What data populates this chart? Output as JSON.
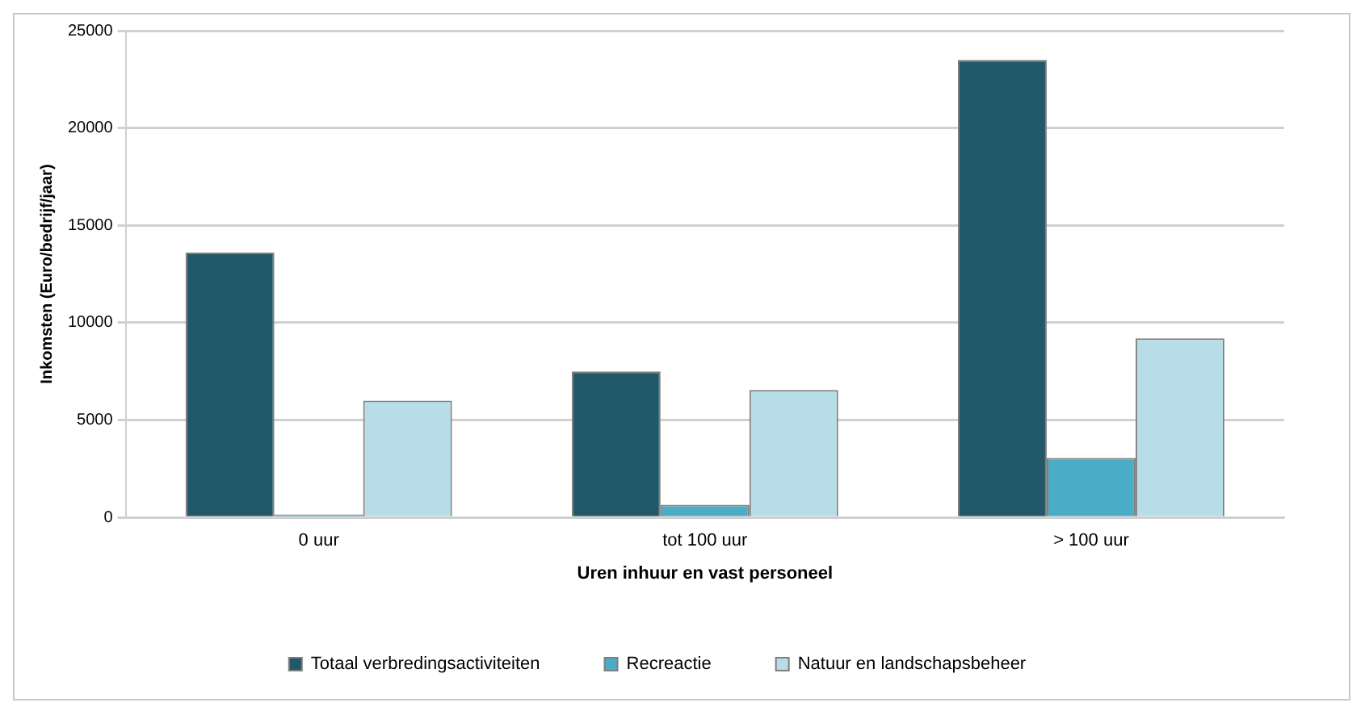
{
  "chart_data": {
    "type": "bar",
    "xlabel": "Uren inhuur en vast personeel",
    "ylabel": "Inkomsten (Euro/bedrijf/jaar)",
    "categories": [
      "0 uur",
      "tot 100 uur",
      "> 100 uur"
    ],
    "series": [
      {
        "name": "Totaal verbredingsactiviteiten",
        "color": "#215968",
        "values": [
          13600,
          7500,
          23500
        ]
      },
      {
        "name": "Recreactie",
        "color": "#4bacc6",
        "values": [
          150,
          650,
          3050
        ]
      },
      {
        "name": "Natuur en landschapsbeheer",
        "color": "#b7dee8",
        "values": [
          6000,
          6550,
          9200
        ]
      }
    ],
    "ylim": [
      0,
      25000
    ],
    "yticks": [
      0,
      5000,
      10000,
      15000,
      20000,
      25000
    ],
    "grid": "y",
    "legend": "bottom"
  }
}
